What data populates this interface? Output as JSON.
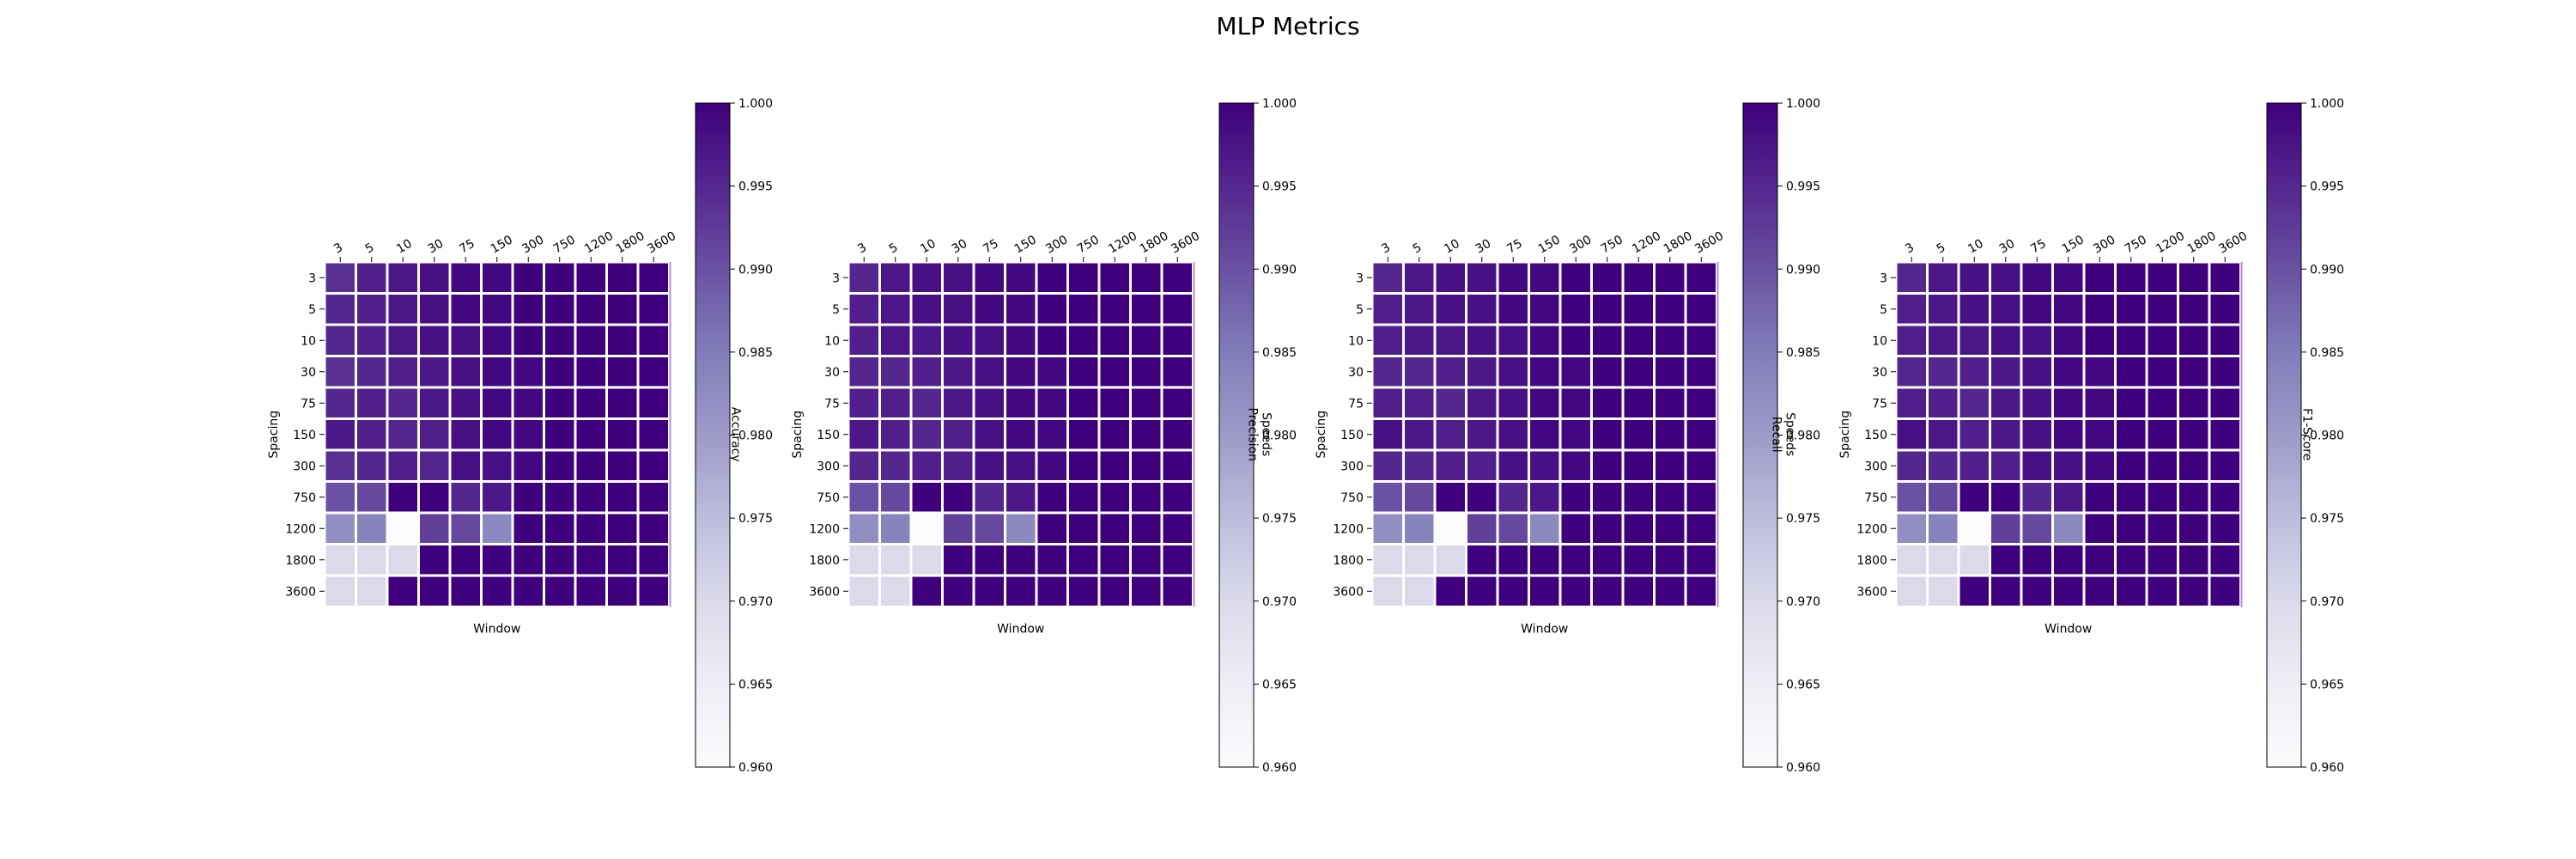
{
  "figure": {
    "title": "MLP Metrics"
  },
  "chart_data": [
    {
      "type": "heatmap",
      "title": "",
      "xlabel": "Window",
      "ylabel": "Spacing",
      "colorbar_label": "Accuracy",
      "colormap": "Purples",
      "vmin": 0.96,
      "vmax": 1.0,
      "colorbar_ticks": [
        "0.960",
        "0.965",
        "0.970",
        "0.975",
        "0.980",
        "0.985",
        "0.990",
        "0.995",
        "1.000"
      ],
      "x_categories": [
        "3",
        "5",
        "10",
        "30",
        "75",
        "150",
        "300",
        "750",
        "1200",
        "1800",
        "3600"
      ],
      "y_categories": [
        "3",
        "5",
        "10",
        "30",
        "75",
        "150",
        "300",
        "750",
        "1200",
        "1800",
        "3600"
      ],
      "values": [
        [
          0.994,
          0.996,
          0.997,
          0.998,
          0.999,
          0.999,
          1.0,
          1.0,
          1.0,
          1.0,
          1.0
        ],
        [
          0.995,
          0.996,
          0.997,
          0.998,
          0.999,
          0.999,
          1.0,
          1.0,
          1.0,
          1.0,
          1.0
        ],
        [
          0.995,
          0.996,
          0.997,
          0.998,
          0.998,
          0.999,
          1.0,
          1.0,
          1.0,
          1.0,
          1.0
        ],
        [
          0.994,
          0.995,
          0.996,
          0.997,
          0.998,
          0.999,
          0.999,
          1.0,
          1.0,
          1.0,
          1.0
        ],
        [
          0.995,
          0.996,
          0.995,
          0.997,
          0.998,
          0.999,
          0.999,
          1.0,
          1.0,
          1.0,
          1.0
        ],
        [
          0.997,
          0.996,
          0.995,
          0.996,
          0.998,
          0.999,
          0.999,
          1.0,
          1.0,
          1.0,
          1.0
        ],
        [
          0.994,
          0.995,
          0.996,
          0.995,
          0.998,
          0.998,
          0.999,
          1.0,
          1.0,
          1.0,
          1.0
        ],
        [
          0.99,
          0.991,
          1.0,
          1.0,
          0.995,
          0.997,
          1.0,
          1.0,
          1.0,
          1.0,
          1.0
        ],
        [
          0.982,
          0.984,
          0.96,
          0.992,
          0.991,
          0.983,
          1.0,
          1.0,
          1.0,
          1.0,
          1.0
        ],
        [
          0.97,
          0.97,
          0.97,
          1.0,
          1.0,
          1.0,
          1.0,
          1.0,
          1.0,
          1.0,
          1.0
        ],
        [
          0.97,
          0.97,
          1.0,
          1.0,
          1.0,
          1.0,
          1.0,
          1.0,
          1.0,
          1.0,
          1.0
        ]
      ]
    },
    {
      "type": "heatmap",
      "title": "",
      "xlabel": "Window",
      "ylabel": "Spacing",
      "colorbar_label": "Speeds\nPrecision",
      "colormap": "Purples",
      "vmin": 0.96,
      "vmax": 1.0,
      "colorbar_ticks": [
        "0.960",
        "0.965",
        "0.970",
        "0.975",
        "0.980",
        "0.985",
        "0.990",
        "0.995",
        "1.000"
      ],
      "x_categories": [
        "3",
        "5",
        "10",
        "30",
        "75",
        "150",
        "300",
        "750",
        "1200",
        "1800",
        "3600"
      ],
      "y_categories": [
        "3",
        "5",
        "10",
        "30",
        "75",
        "150",
        "300",
        "750",
        "1200",
        "1800",
        "3600"
      ],
      "values": [
        [
          0.995,
          0.997,
          0.998,
          0.998,
          0.999,
          0.999,
          1.0,
          1.0,
          1.0,
          1.0,
          1.0
        ],
        [
          0.996,
          0.997,
          0.998,
          0.998,
          0.999,
          0.999,
          1.0,
          1.0,
          1.0,
          1.0,
          1.0
        ],
        [
          0.996,
          0.997,
          0.997,
          0.998,
          0.998,
          0.999,
          1.0,
          1.0,
          1.0,
          1.0,
          1.0
        ],
        [
          0.995,
          0.995,
          0.996,
          0.997,
          0.998,
          0.999,
          0.999,
          1.0,
          1.0,
          1.0,
          1.0
        ],
        [
          0.996,
          0.996,
          0.995,
          0.997,
          0.998,
          0.999,
          0.999,
          1.0,
          1.0,
          1.0,
          1.0
        ],
        [
          0.997,
          0.996,
          0.995,
          0.996,
          0.998,
          0.999,
          0.999,
          1.0,
          1.0,
          1.0,
          1.0
        ],
        [
          0.995,
          0.995,
          0.996,
          0.996,
          0.998,
          0.998,
          0.999,
          1.0,
          1.0,
          1.0,
          1.0
        ],
        [
          0.99,
          0.991,
          1.0,
          1.0,
          0.995,
          0.997,
          1.0,
          1.0,
          1.0,
          1.0,
          1.0
        ],
        [
          0.982,
          0.984,
          0.96,
          0.992,
          0.991,
          0.983,
          1.0,
          1.0,
          1.0,
          1.0,
          1.0
        ],
        [
          0.97,
          0.97,
          0.97,
          1.0,
          1.0,
          1.0,
          1.0,
          1.0,
          1.0,
          1.0,
          1.0
        ],
        [
          0.97,
          0.97,
          1.0,
          1.0,
          1.0,
          1.0,
          1.0,
          1.0,
          1.0,
          1.0,
          1.0
        ]
      ]
    },
    {
      "type": "heatmap",
      "title": "",
      "xlabel": "Window",
      "ylabel": "Spacing",
      "colorbar_label": "Speeds\nRecall",
      "colormap": "Purples",
      "vmin": 0.96,
      "vmax": 1.0,
      "colorbar_ticks": [
        "0.960",
        "0.965",
        "0.970",
        "0.975",
        "0.980",
        "0.985",
        "0.990",
        "0.995",
        "1.000"
      ],
      "x_categories": [
        "3",
        "5",
        "10",
        "30",
        "75",
        "150",
        "300",
        "750",
        "1200",
        "1800",
        "3600"
      ],
      "y_categories": [
        "3",
        "5",
        "10",
        "30",
        "75",
        "150",
        "300",
        "750",
        "1200",
        "1800",
        "3600"
      ],
      "values": [
        [
          0.995,
          0.997,
          0.998,
          0.998,
          0.999,
          0.999,
          1.0,
          1.0,
          1.0,
          1.0,
          1.0
        ],
        [
          0.996,
          0.997,
          0.998,
          0.998,
          0.999,
          0.999,
          1.0,
          1.0,
          1.0,
          1.0,
          1.0
        ],
        [
          0.996,
          0.997,
          0.997,
          0.998,
          0.998,
          0.999,
          1.0,
          1.0,
          1.0,
          1.0,
          1.0
        ],
        [
          0.995,
          0.995,
          0.996,
          0.997,
          0.998,
          0.999,
          0.999,
          1.0,
          1.0,
          1.0,
          1.0
        ],
        [
          0.996,
          0.996,
          0.995,
          0.997,
          0.998,
          0.999,
          0.999,
          1.0,
          1.0,
          1.0,
          1.0
        ],
        [
          0.998,
          0.997,
          0.996,
          0.997,
          0.998,
          0.999,
          0.999,
          1.0,
          1.0,
          1.0,
          1.0
        ],
        [
          0.995,
          0.995,
          0.996,
          0.996,
          0.998,
          0.998,
          0.999,
          1.0,
          1.0,
          1.0,
          1.0
        ],
        [
          0.99,
          0.991,
          1.0,
          1.0,
          0.995,
          0.997,
          1.0,
          1.0,
          1.0,
          1.0,
          1.0
        ],
        [
          0.982,
          0.984,
          0.96,
          0.992,
          0.991,
          0.983,
          1.0,
          1.0,
          1.0,
          1.0,
          1.0
        ],
        [
          0.97,
          0.97,
          0.97,
          1.0,
          1.0,
          1.0,
          1.0,
          1.0,
          1.0,
          1.0,
          1.0
        ],
        [
          0.97,
          0.97,
          1.0,
          1.0,
          1.0,
          1.0,
          1.0,
          1.0,
          1.0,
          1.0,
          1.0
        ]
      ]
    },
    {
      "type": "heatmap",
      "title": "",
      "xlabel": "Window",
      "ylabel": "Spacing",
      "colorbar_label": "F1-Score",
      "colormap": "Purples",
      "vmin": 0.96,
      "vmax": 1.0,
      "colorbar_ticks": [
        "0.960",
        "0.965",
        "0.970",
        "0.975",
        "0.980",
        "0.985",
        "0.990",
        "0.995",
        "1.000"
      ],
      "x_categories": [
        "3",
        "5",
        "10",
        "30",
        "75",
        "150",
        "300",
        "750",
        "1200",
        "1800",
        "3600"
      ],
      "y_categories": [
        "3",
        "5",
        "10",
        "30",
        "75",
        "150",
        "300",
        "750",
        "1200",
        "1800",
        "3600"
      ],
      "values": [
        [
          0.995,
          0.997,
          0.998,
          0.998,
          0.999,
          0.999,
          1.0,
          1.0,
          1.0,
          1.0,
          1.0
        ],
        [
          0.996,
          0.997,
          0.998,
          0.998,
          0.999,
          0.999,
          1.0,
          1.0,
          1.0,
          1.0,
          1.0
        ],
        [
          0.996,
          0.997,
          0.997,
          0.998,
          0.998,
          0.999,
          1.0,
          1.0,
          1.0,
          1.0,
          1.0
        ],
        [
          0.995,
          0.995,
          0.996,
          0.997,
          0.998,
          0.999,
          0.999,
          1.0,
          1.0,
          1.0,
          1.0
        ],
        [
          0.996,
          0.996,
          0.995,
          0.997,
          0.998,
          0.999,
          0.999,
          1.0,
          1.0,
          1.0,
          1.0
        ],
        [
          0.998,
          0.997,
          0.996,
          0.997,
          0.998,
          0.999,
          0.999,
          1.0,
          1.0,
          1.0,
          1.0
        ],
        [
          0.995,
          0.995,
          0.996,
          0.996,
          0.998,
          0.998,
          0.999,
          1.0,
          1.0,
          1.0,
          1.0
        ],
        [
          0.99,
          0.991,
          1.0,
          1.0,
          0.995,
          0.997,
          1.0,
          1.0,
          1.0,
          1.0,
          1.0
        ],
        [
          0.982,
          0.984,
          0.96,
          0.992,
          0.991,
          0.983,
          1.0,
          1.0,
          1.0,
          1.0,
          1.0
        ],
        [
          0.97,
          0.97,
          0.97,
          1.0,
          1.0,
          1.0,
          1.0,
          1.0,
          1.0,
          1.0,
          1.0
        ],
        [
          0.97,
          0.97,
          1.0,
          1.0,
          1.0,
          1.0,
          1.0,
          1.0,
          1.0,
          1.0,
          1.0
        ]
      ]
    }
  ]
}
